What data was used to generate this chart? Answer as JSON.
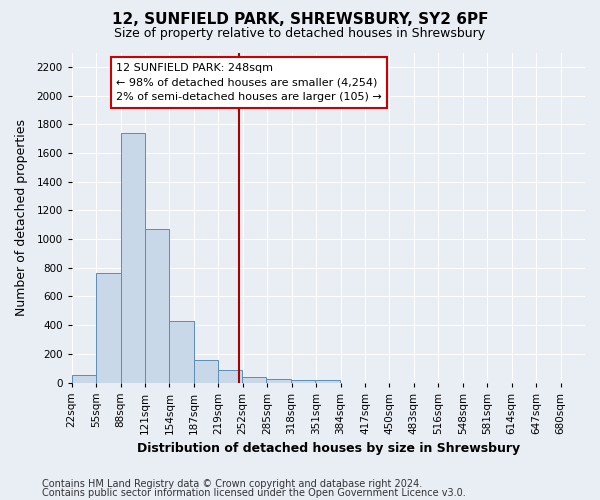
{
  "title": "12, SUNFIELD PARK, SHREWSBURY, SY2 6PF",
  "subtitle": "Size of property relative to detached houses in Shrewsbury",
  "xlabel": "Distribution of detached houses by size in Shrewsbury",
  "ylabel": "Number of detached properties",
  "footer_lines": [
    "Contains HM Land Registry data © Crown copyright and database right 2024.",
    "Contains public sector information licensed under the Open Government Licence v3.0."
  ],
  "bin_labels": [
    "22sqm",
    "55sqm",
    "88sqm",
    "121sqm",
    "154sqm",
    "187sqm",
    "219sqm",
    "252sqm",
    "285sqm",
    "318sqm",
    "351sqm",
    "384sqm",
    "417sqm",
    "450sqm",
    "483sqm",
    "516sqm",
    "548sqm",
    "581sqm",
    "614sqm",
    "647sqm",
    "680sqm"
  ],
  "bar_values": [
    55,
    760,
    1740,
    1070,
    430,
    155,
    85,
    40,
    25,
    20,
    15,
    0,
    0,
    0,
    0,
    0,
    0,
    0,
    0,
    0,
    0
  ],
  "bin_edges": [
    22,
    55,
    88,
    121,
    154,
    187,
    219,
    252,
    285,
    318,
    351,
    384,
    417,
    450,
    483,
    516,
    548,
    581,
    614,
    647,
    680
  ],
  "bar_color": "#c8d8e8",
  "bar_edge_color": "#5b8db8",
  "property_value": 248,
  "vline_color": "#aa0000",
  "annotation_text": "12 SUNFIELD PARK: 248sqm\n← 98% of detached houses are smaller (4,254)\n2% of semi-detached houses are larger (105) →",
  "annotation_box_color": "#ffffff",
  "annotation_box_edge_color": "#cc0000",
  "ylim": [
    0,
    2300
  ],
  "yticks": [
    0,
    200,
    400,
    600,
    800,
    1000,
    1200,
    1400,
    1600,
    1800,
    2000,
    2200
  ],
  "background_color": "#e8eef4",
  "plot_bg_color": "#dde6f0",
  "grid_color": "#ffffff",
  "title_fontsize": 11,
  "subtitle_fontsize": 9,
  "axis_label_fontsize": 9,
  "tick_fontsize": 7.5,
  "annotation_fontsize": 8,
  "footer_fontsize": 7
}
